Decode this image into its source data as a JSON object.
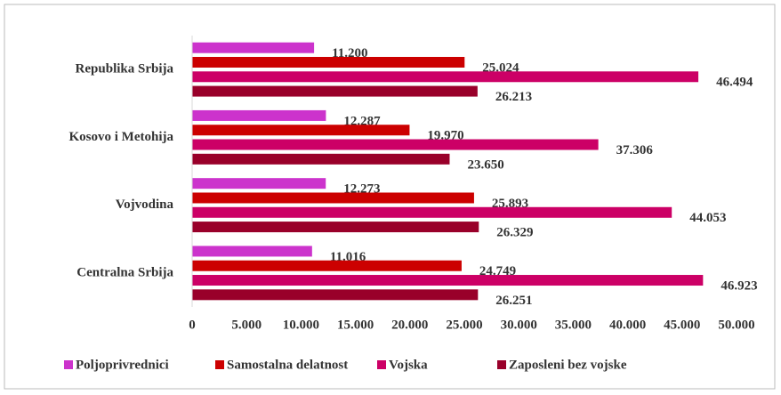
{
  "chart_data": {
    "type": "bar",
    "orientation": "horizontal",
    "categories": [
      "Republika Srbija",
      "Kosovo i Metohija",
      "Vojvodina",
      "Centralna Srbija"
    ],
    "series": [
      {
        "name": "Poljoprivrednici",
        "color": "#cc33cc",
        "values": [
          11200,
          12287,
          12273,
          11016
        ],
        "value_labels": [
          "11.200",
          "12.287",
          "12.273",
          "11.016"
        ]
      },
      {
        "name": "Samostalna delatnost",
        "color": "#cc0000",
        "values": [
          25024,
          19970,
          25893,
          24749
        ],
        "value_labels": [
          "25.024",
          "19.970",
          "25.893",
          "24.749"
        ]
      },
      {
        "name": "Vojska",
        "color": "#cc0066",
        "values": [
          46494,
          37306,
          44053,
          46923
        ],
        "value_labels": [
          "46.494",
          "37.306",
          "44.053",
          "46.923"
        ]
      },
      {
        "name": "Zaposleni bez vojske",
        "color": "#99002a",
        "values": [
          26213,
          23650,
          26329,
          26251
        ],
        "value_labels": [
          "26.213",
          "23.650",
          "26.329",
          "26.251"
        ]
      }
    ],
    "xlim": [
      0,
      50000
    ],
    "xticks": [
      0,
      {
        "value": 5000,
        "label": "5.000"
      },
      {
        "value": 10000,
        "label": "10.000"
      },
      {
        "value": 15000,
        "label": "15.000"
      },
      {
        "value": 20000,
        "label": "20.000"
      },
      {
        "value": 25000,
        "label": "25.000"
      },
      {
        "value": 30000,
        "label": "30.000"
      },
      {
        "value": 35000,
        "label": "35.000"
      },
      {
        "value": 40000,
        "label": "40.000"
      },
      {
        "value": 45000,
        "label": "45.000"
      },
      {
        "value": 50000,
        "label": "50.000"
      }
    ],
    "grid": false,
    "legend": "bottom"
  }
}
